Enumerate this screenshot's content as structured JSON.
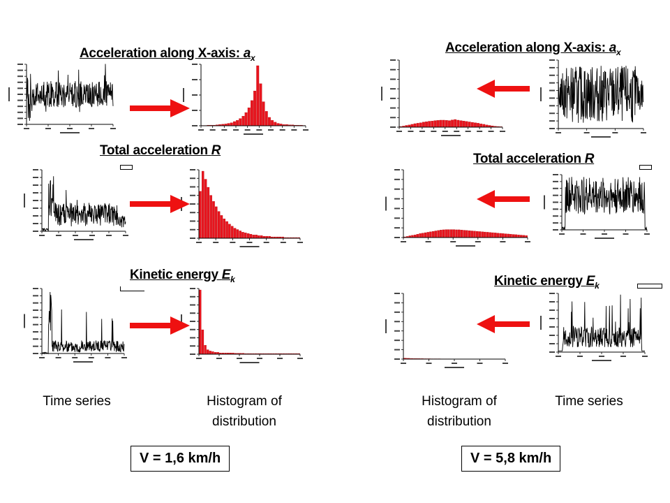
{
  "panels": {
    "left": {
      "titles": {
        "ax": {
          "text": "Acceleration along X-axis: ",
          "sym": "a",
          "sub": "x"
        },
        "r": {
          "text": "Total acceleration ",
          "sym": "R",
          "sub": ""
        },
        "ek": {
          "text": "Kinetic energy ",
          "sym": "E",
          "sub": "k"
        }
      },
      "captions": {
        "series": "Time series",
        "hist": "Histogram of distribution"
      },
      "speed": "V = 1,6 km/h"
    },
    "right": {
      "titles": {
        "ax": {
          "text": "Acceleration along X-axis: ",
          "sym": "a",
          "sub": "x"
        },
        "r": {
          "text": "Total acceleration ",
          "sym": "R",
          "sub": ""
        },
        "ek": {
          "text": "Kinetic energy ",
          "sym": "E",
          "sub": "k"
        }
      },
      "captions": {
        "series": "Time series",
        "hist": "Histogram of distribution"
      },
      "speed": "V = 5,8 km/h"
    }
  },
  "colors": {
    "bar": "#e8141e",
    "series": "#000000",
    "arrow": "#ee1111"
  },
  "chart_data": [
    {
      "id": "L-ax-ts",
      "type": "line",
      "style": "noise-centered",
      "yticks": 10,
      "xticks": 4
    },
    {
      "id": "L-ax-hist",
      "type": "bar",
      "values": [
        0.5,
        0.5,
        1,
        1,
        1,
        1.5,
        2,
        2.5,
        3,
        4,
        5,
        7,
        9,
        12,
        16,
        22,
        30,
        42,
        58,
        100,
        70,
        40,
        24,
        14,
        9,
        6,
        4,
        3,
        2,
        2,
        1.5,
        1.5,
        1,
        1,
        1,
        0.5
      ],
      "xticks": 9,
      "yticks": 4
    },
    {
      "id": "L-r-ts",
      "type": "line",
      "style": "noise-positive-spike",
      "yticks": 8,
      "xticks": 5
    },
    {
      "id": "L-r-hist",
      "type": "bar",
      "values": [
        70,
        100,
        88,
        76,
        64,
        55,
        47,
        40,
        34,
        29,
        25,
        21,
        18,
        15,
        13,
        11,
        9,
        8,
        7,
        6,
        5,
        5,
        4,
        4,
        3,
        3,
        3,
        2,
        2,
        2,
        2,
        2,
        1,
        1,
        1,
        1,
        1,
        1
      ],
      "xticks": 6,
      "yticks": 8
    },
    {
      "id": "L-ek-ts",
      "type": "line",
      "style": "spiky-positive",
      "yticks": 9,
      "xticks": 5
    },
    {
      "id": "L-ek-hist",
      "type": "bar",
      "values": [
        100,
        38,
        14,
        7,
        5,
        4,
        3,
        3,
        2,
        2,
        2,
        2,
        2,
        2,
        1.5,
        1.5,
        1.5,
        1.5,
        1,
        1,
        1,
        1,
        1,
        1,
        1,
        1,
        1,
        1,
        1,
        1,
        1,
        1,
        1,
        1,
        1,
        1,
        1,
        1,
        1,
        1
      ],
      "xticks": 5,
      "yticks": 8
    },
    {
      "id": "R-ax-hist",
      "type": "bar",
      "values": [
        0.3,
        0.5,
        0.8,
        1,
        1.3,
        1.6,
        1.8,
        2,
        2.3,
        2.5,
        2.7,
        2.8,
        3,
        3.1,
        3.2,
        3.2,
        3.1,
        3,
        3.3,
        3.5,
        3.2,
        3,
        2.8,
        2.6,
        2.4,
        2.2,
        2,
        1.8,
        1.5,
        1.3,
        1,
        0.8,
        0.6,
        0.4,
        0.3,
        0.2
      ],
      "ymax": 30,
      "xticks": 9,
      "yticks": 7
    },
    {
      "id": "R-ax-ts",
      "type": "line",
      "style": "noise-centered-dense",
      "yticks": 9,
      "xticks": 3
    },
    {
      "id": "R-r-hist",
      "type": "bar",
      "values": [
        0.3,
        0.5,
        0.8,
        1,
        1.2,
        1.5,
        1.8,
        2,
        2.2,
        2.4,
        2.6,
        2.8,
        3,
        3.2,
        3.4,
        3.5,
        3.6,
        3.6,
        3.6,
        3.6,
        3.5,
        3.5,
        3.4,
        3.3,
        3.2,
        3.1,
        3,
        2.9,
        2.8,
        2.7,
        2.6,
        2.5,
        2.4,
        2.3,
        2.2,
        2.1,
        2,
        1.9,
        1.8,
        1.7,
        1.6,
        1.5,
        1.4,
        1.3,
        1.2,
        1.1,
        1,
        0.9
      ],
      "ymax": 30,
      "xticks": 5,
      "yticks": 7
    },
    {
      "id": "R-r-ts",
      "type": "line",
      "style": "noise-positive-dense",
      "yticks": 8,
      "xticks": 4
    },
    {
      "id": "R-ek-hist",
      "type": "bar",
      "values": [
        1.5,
        1.2,
        1,
        0.9,
        0.8,
        0.7,
        0.6,
        0.6,
        0.5,
        0.5,
        0.5,
        0.4,
        0.4,
        0.4,
        0.3,
        0.3,
        0.3,
        0.3,
        0.3,
        0.3,
        0.3,
        0.3,
        0.2,
        0.2,
        0.2,
        0.2,
        0.2,
        0.2,
        0.2,
        0.2
      ],
      "ymax": 100,
      "xticks": 4,
      "yticks": 7
    },
    {
      "id": "R-ek-ts",
      "type": "line",
      "style": "spiky-dense",
      "yticks": 7,
      "xticks": 4
    }
  ]
}
